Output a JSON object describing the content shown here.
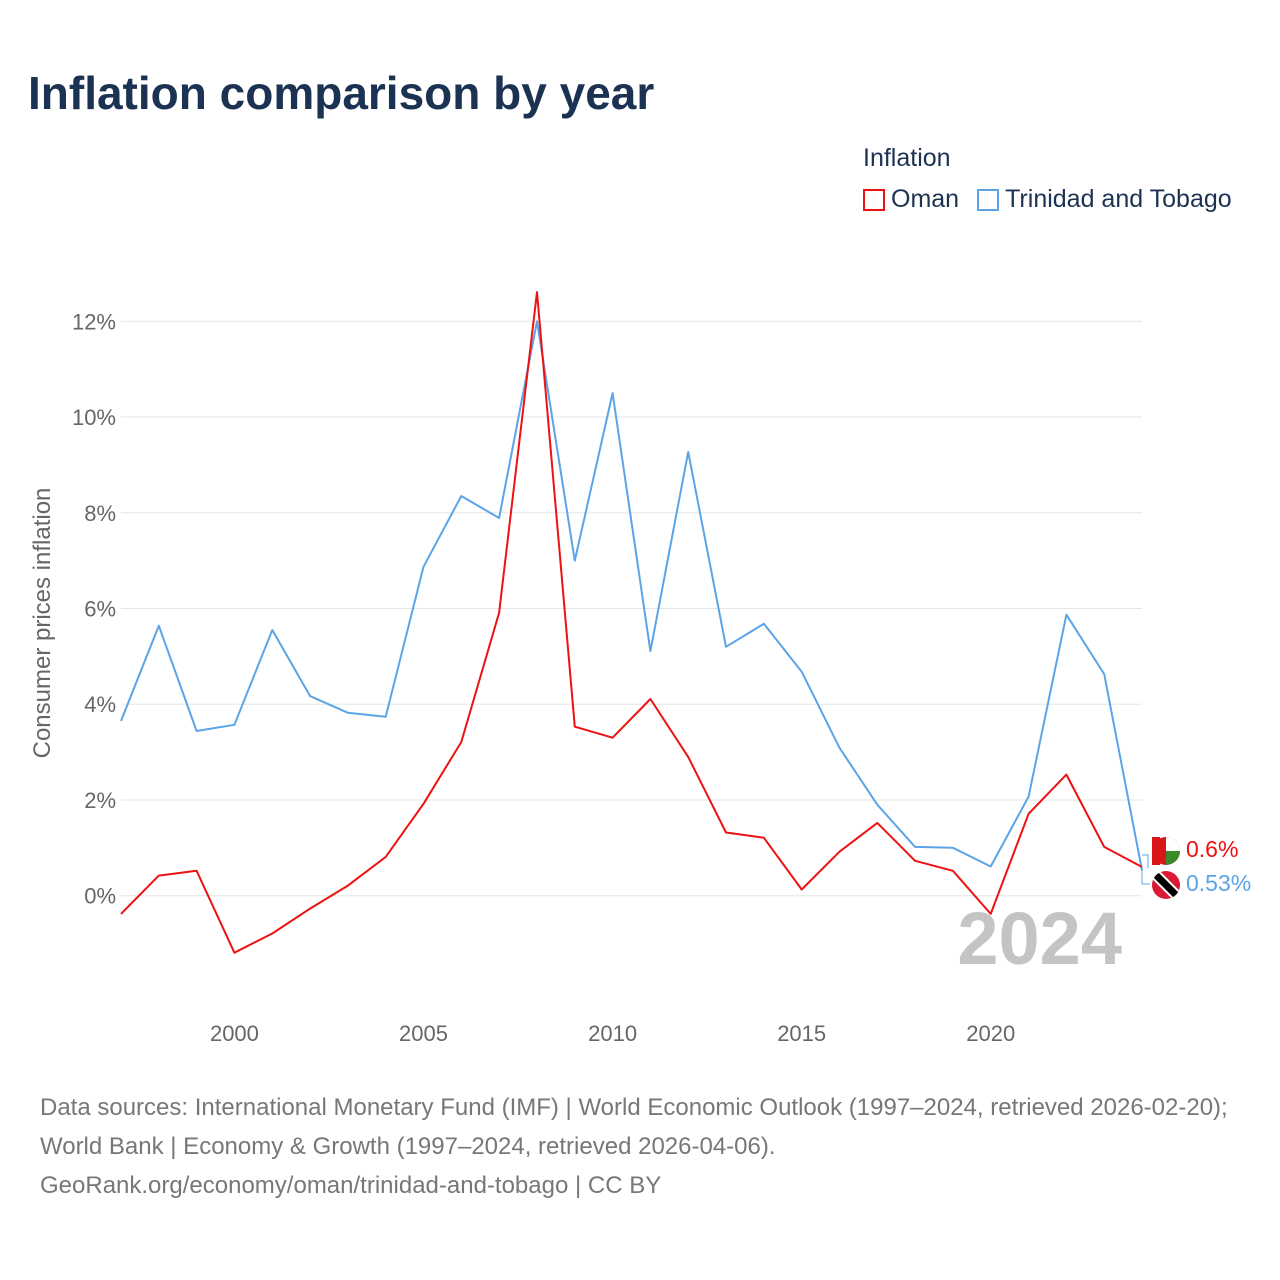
{
  "title": "Inflation comparison by year",
  "legend": {
    "title": "Inflation",
    "items": [
      {
        "label": "Oman",
        "color": "#ee1111"
      },
      {
        "label": "Trinidad and Tobago",
        "color": "#5ba4e8"
      }
    ]
  },
  "year_watermark": "2024",
  "end_labels": [
    {
      "text": "0.6%",
      "flag_icon": "oman-flag-icon",
      "color": "#ee1111"
    },
    {
      "text": "0.53%",
      "flag_icon": "trinidad-and-tobago-flag-icon",
      "color": "#5ba4e8"
    }
  ],
  "footer": {
    "sources": "Data sources: International Monetary Fund (IMF) | World Economic Outlook (1997–2024, retrieved 2026-02-20); World Bank | Economy & Growth (1997–2024, retrieved 2026-04-06).",
    "credit": "GeoRank.org/economy/oman/trinidad-and-tobago | CC BY"
  },
  "chart_data": {
    "type": "line",
    "title": "Inflation comparison by year",
    "xlabel": "",
    "ylabel": "Consumer prices inflation",
    "x": [
      1997,
      1998,
      1999,
      2000,
      2001,
      2002,
      2003,
      2004,
      2005,
      2006,
      2007,
      2008,
      2009,
      2010,
      2011,
      2012,
      2013,
      2014,
      2015,
      2016,
      2017,
      2018,
      2019,
      2020,
      2021,
      2022,
      2023,
      2024
    ],
    "xlim": [
      1997,
      2024
    ],
    "ylim": [
      -2.2,
      12.8
    ],
    "xticks": [
      2000,
      2005,
      2010,
      2015,
      2020
    ],
    "xtick_labels": [
      "2000",
      "2005",
      "2010",
      "2015",
      "2020"
    ],
    "yticks": [
      0,
      2,
      4,
      6,
      8,
      10,
      12
    ],
    "ytick_labels": [
      "0%",
      "2%",
      "4%",
      "6%",
      "8%",
      "10%",
      "12%"
    ],
    "grid": true,
    "legend_position": "top-right",
    "series": [
      {
        "name": "Oman",
        "color": "#ee1111",
        "values": [
          -0.38,
          0.42,
          0.52,
          -1.19,
          -0.79,
          -0.27,
          0.21,
          0.81,
          1.92,
          3.21,
          5.91,
          12.61,
          3.53,
          3.3,
          4.11,
          2.9,
          1.32,
          1.21,
          0.13,
          0.92,
          1.52,
          0.73,
          0.52,
          -0.38,
          1.71,
          2.53,
          1.02,
          0.6
        ]
      },
      {
        "name": "Trinidad and Tobago",
        "color": "#5ba4e8",
        "values": [
          3.65,
          5.64,
          3.44,
          3.57,
          5.55,
          4.17,
          3.82,
          3.74,
          6.87,
          8.35,
          7.89,
          12.0,
          7.0,
          10.5,
          5.11,
          9.27,
          5.2,
          5.68,
          4.68,
          3.09,
          1.9,
          1.02,
          1.0,
          0.61,
          2.07,
          5.87,
          4.63,
          0.53
        ]
      }
    ]
  }
}
